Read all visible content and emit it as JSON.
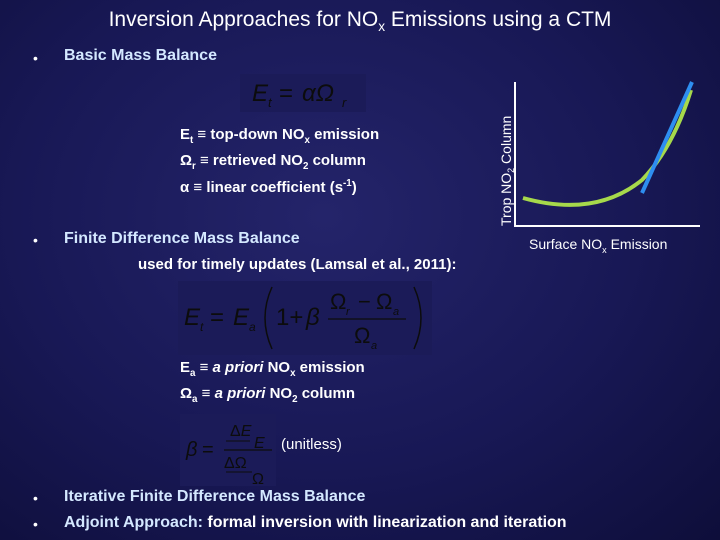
{
  "title": {
    "main": "Inversion Approaches for NO",
    "sub": "x",
    "tail": " Emissions using a CTM"
  },
  "bullet_glyph": "•",
  "section1": {
    "heading": "Basic Mass Balance",
    "equation": "Et = αΩr",
    "defs": [
      {
        "sym": "E",
        "symsub": "t",
        "rel": " ≡ ",
        "pre": "top-down NO",
        "sub": "x",
        "post": " emission"
      },
      {
        "sym": "Ω",
        "symsub": "r",
        "rel": " ≡ ",
        "pre": "retrieved NO",
        "sub": "2",
        "post": " column"
      },
      {
        "sym": "α",
        "rel": " ≡ ",
        "pre": "linear coefficient (s",
        "sup": "-1",
        "post": ")"
      }
    ]
  },
  "section2": {
    "heading": "Finite Difference Mass Balance",
    "subheading": "used for timely updates (Lamsal et al., 2011):",
    "equation": "Et = Ea (1 + β (Ωr − Ωa) / Ωa)",
    "defs": [
      {
        "sym": "E",
        "symsub": "a",
        "rel": " ≡ ",
        "ital": "a priori",
        "pre": " NO",
        "sub": "x",
        "post": " emission"
      },
      {
        "sym": "Ω",
        "symsub": "a",
        "rel": " ≡ ",
        "ital": "a priori",
        "pre": " NO",
        "sub": "2",
        "post": " column"
      }
    ],
    "beta_equation": "β = (ΔE/E) / (ΔΩ/Ω)",
    "beta_note": "(unitless)"
  },
  "section3": {
    "item1": "Iterative Finite Difference Mass Balance",
    "item2_colored": "Adjoint Approach:",
    "item2_rest": " formal inversion with linearization and iteration"
  },
  "graph": {
    "ylabel_pre": "Trop NO",
    "ylabel_sub": "2",
    "ylabel_post": " Column",
    "xlabel_pre": "Surface NO",
    "xlabel_sub": "x",
    "xlabel_post": " Emission",
    "colors": {
      "axis": "#ffffff",
      "curve": "#a6d94b",
      "tangent": "#2e8ef0"
    }
  }
}
